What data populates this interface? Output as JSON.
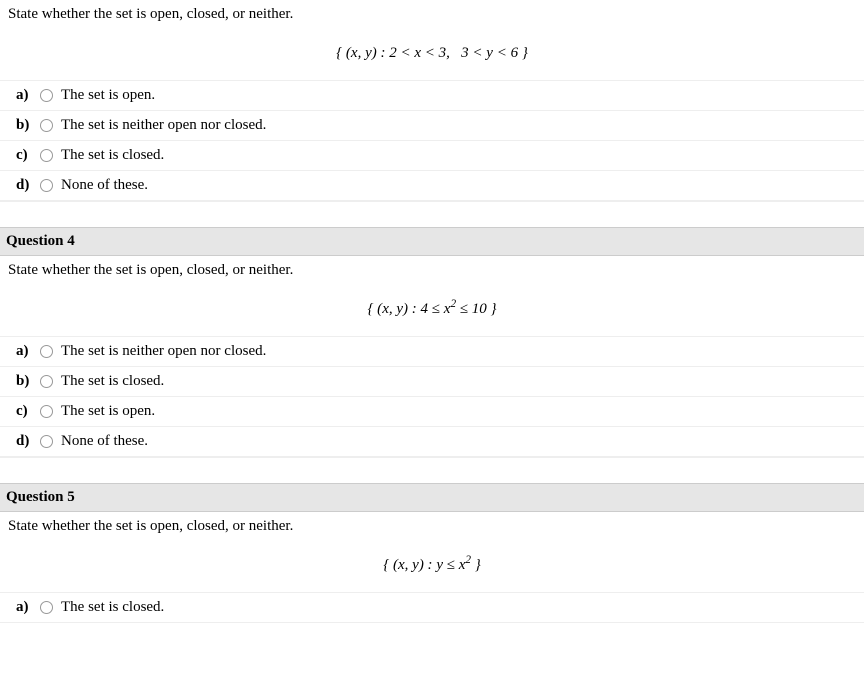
{
  "q3": {
    "prompt": "State whether the set is open, closed, or neither.",
    "formula_html": "{ (<i>x</i>, <i>y</i>) : 2 &lt; <i>x</i> &lt; 3, &nbsp; 3 &lt; <i>y</i> &lt; 6 }",
    "choices": {
      "a": {
        "letter": "a)",
        "text": "The set is open."
      },
      "b": {
        "letter": "b)",
        "text": "The set is neither open nor closed."
      },
      "c": {
        "letter": "c)",
        "text": "The set is closed."
      },
      "d": {
        "letter": "d)",
        "text": "None of these."
      }
    }
  },
  "q4": {
    "header": "Question 4",
    "prompt": "State whether the set is open, closed, or neither.",
    "formula_html": "{ (<i>x</i>, <i>y</i>) : 4 &le; <i>x</i><sup>2</sup> &le; 10 }",
    "choices": {
      "a": {
        "letter": "a)",
        "text": "The set is neither open nor closed."
      },
      "b": {
        "letter": "b)",
        "text": "The set is closed."
      },
      "c": {
        "letter": "c)",
        "text": "The set is open."
      },
      "d": {
        "letter": "d)",
        "text": "None of these."
      }
    }
  },
  "q5": {
    "header": "Question 5",
    "prompt": "State whether the set is open, closed, or neither.",
    "formula_html": "{ (<i>x</i>, <i>y</i>) : <i>y</i> &le; <i>x</i><sup>2</sup> }",
    "choices": {
      "a": {
        "letter": "a)",
        "text": "The set is closed."
      }
    }
  }
}
